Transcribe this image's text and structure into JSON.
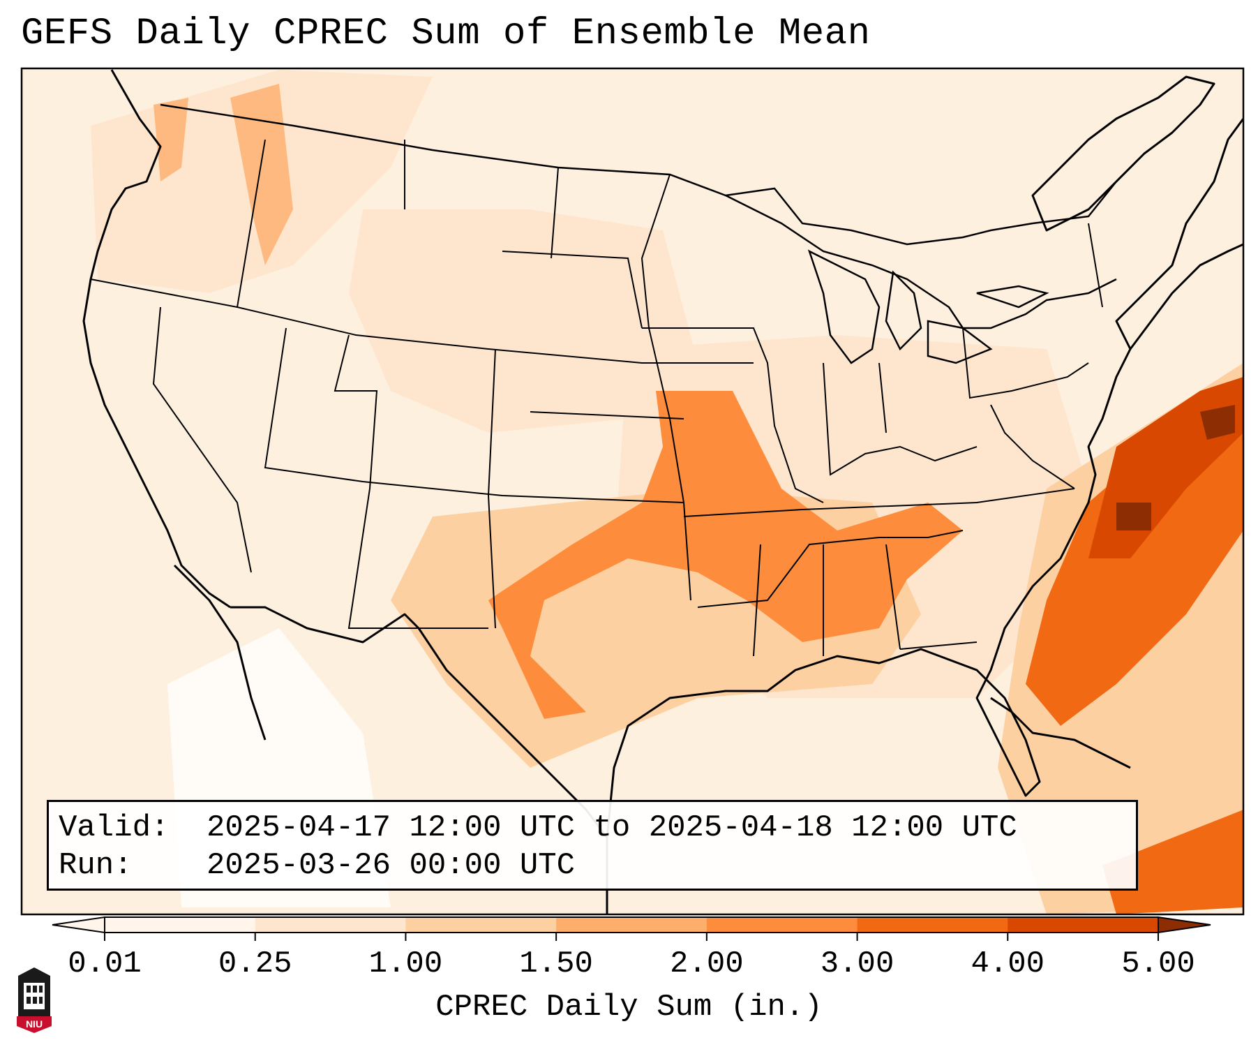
{
  "title": "GEFS Daily CPREC Sum of Ensemble Mean",
  "info": {
    "valid_label": "Valid:",
    "valid_value": "2025-04-17 12:00 UTC to 2025-04-18 12:00 UTC",
    "run_label": "Run:",
    "run_value": "2025-03-26 00:00 UTC"
  },
  "colorbar": {
    "label": "CPREC Daily Sum (in.)",
    "ticks": [
      "0.01",
      "0.25",
      "1.00",
      "1.50",
      "2.00",
      "3.00",
      "4.00",
      "5.00"
    ],
    "colors": [
      "#fff5eb",
      "#fee6ce",
      "#fdd0a2",
      "#fdae6b",
      "#fd8d3c",
      "#f16913",
      "#d94801",
      "#8c2d04"
    ],
    "extend": "both"
  },
  "logo": {
    "text": "NIU"
  }
}
